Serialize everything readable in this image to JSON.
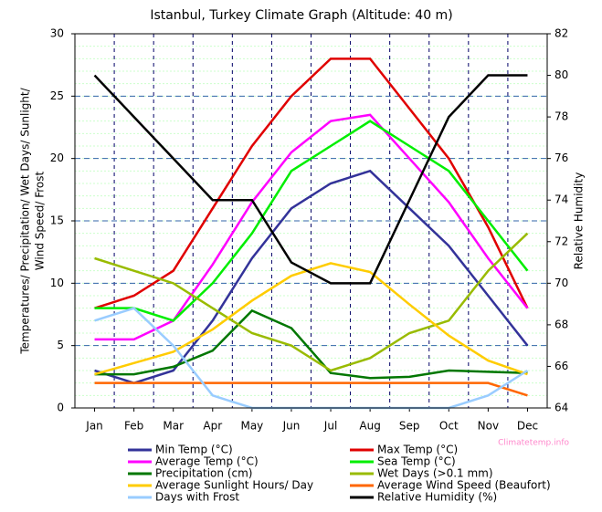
{
  "chart_data": {
    "type": "line",
    "title": "Istanbul, Turkey Climate Graph (Altitude: 40 m)",
    "y_label": [
      "Temperatures/ Precipitation/ Wet Days/ Sunlight/",
      "Wind Speed/ Frost"
    ],
    "y2_label": "Relative Humidity",
    "source": "Climatetemp.info",
    "categories": [
      "Jan",
      "Feb",
      "Mar",
      "Apr",
      "May",
      "Jun",
      "Jul",
      "Aug",
      "Sep",
      "Oct",
      "Nov",
      "Dec"
    ],
    "ylim": [
      0,
      30
    ],
    "yticks": [
      0,
      5,
      10,
      15,
      20,
      25,
      30
    ],
    "y2lim": [
      64,
      82
    ],
    "y2ticks": [
      64,
      66,
      68,
      70,
      72,
      74,
      76,
      78,
      80,
      82
    ],
    "grid": true,
    "minor_grid": true,
    "series": [
      {
        "name": "Min Temp (°C)",
        "color": "#333399",
        "values": [
          3,
          2,
          3,
          7,
          12,
          16,
          18,
          19,
          16,
          13,
          9,
          5
        ]
      },
      {
        "name": "Max Temp (°C)",
        "color": "#e00000",
        "values": [
          8,
          9,
          11,
          16,
          21,
          25,
          28,
          28,
          24,
          20,
          14.5,
          8
        ]
      },
      {
        "name": "Average Temp (°C)",
        "color": "#ff00ff",
        "values": [
          5.5,
          5.5,
          7,
          11.5,
          16.5,
          20.5,
          23,
          23.5,
          20,
          16.5,
          12,
          8
        ]
      },
      {
        "name": "Sea Temp (°C)",
        "color": "#00ee00",
        "values": [
          8,
          8,
          7,
          10,
          14,
          19,
          21,
          23,
          21,
          19,
          15,
          11
        ]
      },
      {
        "name": "Precipitation (cm)",
        "color": "#007700",
        "values": [
          2.7,
          2.7,
          3.3,
          4.6,
          7.8,
          6.4,
          2.8,
          2.4,
          2.5,
          3.0,
          2.9,
          2.8
        ]
      },
      {
        "name": "Wet Days (>0.1 mm)",
        "color": "#99bb00",
        "values": [
          12,
          11,
          10,
          8,
          6,
          5,
          3,
          4,
          6,
          7,
          11,
          14
        ]
      },
      {
        "name": "Average Sunlight Hours/ Day",
        "color": "#ffcc00",
        "values": [
          2.7,
          3.6,
          4.5,
          6.3,
          8.6,
          10.6,
          11.6,
          10.9,
          8.3,
          5.8,
          3.8,
          2.7
        ]
      },
      {
        "name": "Average Wind Speed (Beaufort)",
        "color": "#ff6600",
        "values": [
          2,
          2,
          2,
          2,
          2,
          2,
          2,
          2,
          2,
          2,
          2,
          1
        ]
      },
      {
        "name": "Days with Frost",
        "color": "#99ccff",
        "values": [
          7,
          8,
          5,
          1,
          0,
          0,
          0,
          0,
          0,
          0,
          1,
          3
        ]
      },
      {
        "name": "Relative Humidity (%)",
        "color": "#000000",
        "axis": "y2",
        "values": [
          80,
          78,
          76,
          74,
          74,
          71,
          70,
          70,
          74,
          78,
          80,
          80
        ]
      }
    ]
  }
}
